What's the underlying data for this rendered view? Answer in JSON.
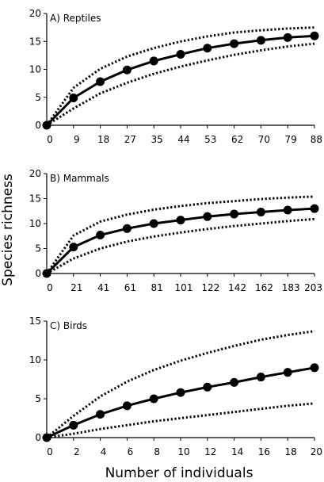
{
  "chart_data": [
    {
      "type": "line",
      "title": "A) Reptiles",
      "x": [
        0,
        9,
        18,
        27,
        35,
        44,
        53,
        62,
        70,
        79,
        88
      ],
      "xticks": [
        "0",
        "9",
        "18",
        "27",
        "35",
        "44",
        "53",
        "62",
        "70",
        "79",
        "88"
      ],
      "yticks": [
        0,
        5,
        10,
        15,
        20
      ],
      "ylim": [
        0,
        20
      ],
      "series": [
        {
          "role": "mean",
          "style": "solid-with-markers",
          "values": [
            0,
            4.9,
            7.8,
            9.9,
            11.5,
            12.7,
            13.8,
            14.6,
            15.2,
            15.7,
            16.0
          ]
        },
        {
          "role": "upper",
          "style": "dotted",
          "values": [
            0,
            6.7,
            10.1,
            12.3,
            13.8,
            15.0,
            15.9,
            16.6,
            17.0,
            17.3,
            17.5
          ]
        },
        {
          "role": "lower",
          "style": "dotted",
          "values": [
            0,
            3.0,
            5.7,
            7.6,
            9.2,
            10.5,
            11.6,
            12.6,
            13.4,
            14.1,
            14.6
          ]
        }
      ]
    },
    {
      "type": "line",
      "title": "B) Mammals",
      "x": [
        0,
        21,
        41,
        61,
        81,
        101,
        122,
        142,
        162,
        183,
        203
      ],
      "xticks": [
        "0",
        "21",
        "41",
        "61",
        "81",
        "101",
        "122",
        "142",
        "162",
        "183",
        "203"
      ],
      "yticks": [
        0,
        5,
        10,
        15,
        20
      ],
      "ylim": [
        0,
        20
      ],
      "series": [
        {
          "role": "mean",
          "style": "solid-with-markers",
          "values": [
            0,
            5.3,
            7.7,
            9.0,
            10.0,
            10.7,
            11.4,
            11.9,
            12.3,
            12.7,
            13.0
          ]
        },
        {
          "role": "upper",
          "style": "dotted",
          "values": [
            0,
            7.6,
            10.4,
            11.8,
            12.8,
            13.5,
            14.1,
            14.5,
            14.9,
            15.2,
            15.4
          ]
        },
        {
          "role": "lower",
          "style": "dotted",
          "values": [
            0,
            3.0,
            5.0,
            6.4,
            7.4,
            8.2,
            8.9,
            9.5,
            10.0,
            10.5,
            10.9
          ]
        }
      ]
    },
    {
      "type": "line",
      "title": "C) Birds",
      "x": [
        0,
        2,
        4,
        6,
        8,
        10,
        12,
        14,
        16,
        18,
        20
      ],
      "xticks": [
        "0",
        "2",
        "4",
        "6",
        "8",
        "10",
        "12",
        "14",
        "16",
        "18",
        "20"
      ],
      "yticks": [
        0,
        5,
        10,
        15
      ],
      "ylim": [
        0,
        15
      ],
      "series": [
        {
          "role": "mean",
          "style": "solid-with-markers",
          "values": [
            0,
            1.6,
            3.0,
            4.1,
            5.0,
            5.8,
            6.5,
            7.1,
            7.8,
            8.4,
            9.0
          ]
        },
        {
          "role": "upper",
          "style": "dotted",
          "values": [
            0,
            2.8,
            5.3,
            7.2,
            8.7,
            9.9,
            10.9,
            11.8,
            12.6,
            13.2,
            13.7
          ]
        },
        {
          "role": "lower",
          "style": "dotted",
          "values": [
            0,
            0.5,
            1.1,
            1.6,
            2.1,
            2.5,
            2.9,
            3.3,
            3.7,
            4.1,
            4.4
          ]
        }
      ]
    }
  ],
  "axes": {
    "ylabel": "Species richness",
    "xlabel": "Number of individuals"
  }
}
